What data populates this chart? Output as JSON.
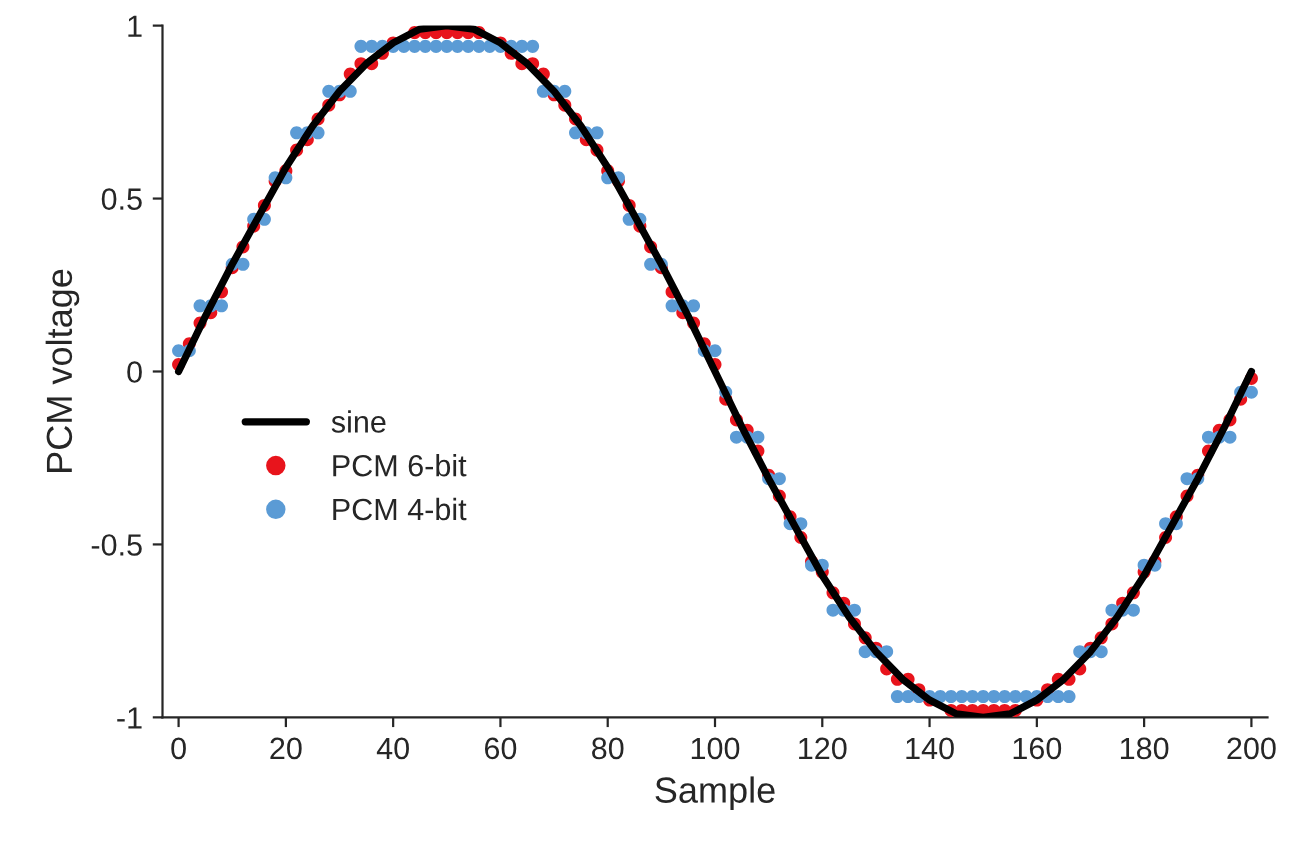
{
  "chart_data": {
    "type": "scatter",
    "xlabel": "Sample",
    "ylabel": "PCM voltage",
    "xlim": [
      -3,
      203
    ],
    "xticks": [
      0,
      20,
      40,
      60,
      80,
      100,
      120,
      140,
      160,
      180,
      200
    ],
    "ylim": [
      -1,
      1
    ],
    "yticks": [
      -1,
      -0.5,
      0,
      0.5,
      1
    ],
    "grid": false,
    "legend": "center left",
    "marker": "circle",
    "series": [
      {
        "name": "sine",
        "type": "line",
        "color": "#000000",
        "line_style": "solid",
        "marker": "none",
        "x": [
          0,
          5,
          10,
          15,
          20,
          25,
          30,
          35,
          40,
          45,
          50,
          55,
          60,
          65,
          70,
          75,
          80,
          85,
          90,
          95,
          100,
          105,
          110,
          115,
          120,
          125,
          130,
          135,
          140,
          145,
          150,
          155,
          160,
          165,
          170,
          175,
          180,
          185,
          190,
          195,
          200
        ],
        "values": [
          0,
          0.16,
          0.31,
          0.45,
          0.59,
          0.71,
          0.81,
          0.89,
          0.95,
          0.99,
          1,
          0.99,
          0.95,
          0.89,
          0.81,
          0.71,
          0.59,
          0.45,
          0.31,
          0.16,
          0,
          -0.16,
          -0.31,
          -0.45,
          -0.59,
          -0.71,
          -0.81,
          -0.89,
          -0.95,
          -0.99,
          -1,
          -0.99,
          -0.95,
          -0.89,
          -0.81,
          -0.71,
          -0.59,
          -0.45,
          -0.31,
          -0.16,
          0
        ]
      },
      {
        "name": "PCM 6-bit",
        "color": "#e8141c",
        "x": [
          0,
          2,
          4,
          6,
          8,
          10,
          12,
          14,
          16,
          18,
          20,
          22,
          24,
          26,
          28,
          30,
          32,
          34,
          36,
          38,
          40,
          42,
          44,
          46,
          48,
          50,
          52,
          54,
          56,
          58,
          60,
          62,
          64,
          66,
          68,
          70,
          72,
          74,
          76,
          78,
          80,
          82,
          84,
          86,
          88,
          90,
          92,
          94,
          96,
          98,
          100,
          102,
          104,
          106,
          108,
          110,
          112,
          114,
          116,
          118,
          120,
          122,
          124,
          126,
          128,
          130,
          132,
          134,
          136,
          138,
          140,
          142,
          144,
          146,
          148,
          150,
          152,
          154,
          156,
          158,
          160,
          162,
          164,
          166,
          168,
          170,
          172,
          174,
          176,
          178,
          180,
          182,
          184,
          186,
          188,
          190,
          192,
          194,
          196,
          198,
          200
        ],
        "values": [
          0.02,
          0.08,
          0.14,
          0.17,
          0.23,
          0.3,
          0.36,
          0.42,
          0.48,
          0.55,
          0.58,
          0.64,
          0.67,
          0.73,
          0.77,
          0.8,
          0.86,
          0.89,
          0.89,
          0.92,
          0.95,
          null,
          0.98,
          0.98,
          0.98,
          0.98,
          0.98,
          0.98,
          0.98,
          null,
          0.95,
          0.92,
          0.89,
          0.89,
          0.86,
          0.8,
          0.77,
          0.73,
          0.67,
          0.64,
          0.58,
          0.55,
          0.48,
          0.42,
          0.36,
          0.3,
          0.23,
          0.17,
          0.14,
          0.08,
          0.02,
          -0.08,
          -0.14,
          -0.17,
          -0.23,
          -0.3,
          -0.36,
          -0.42,
          -0.48,
          -0.55,
          -0.58,
          -0.64,
          -0.67,
          -0.73,
          -0.77,
          -0.8,
          -0.86,
          -0.89,
          -0.89,
          -0.92,
          -0.95,
          null,
          -0.98,
          -0.98,
          -0.98,
          -0.98,
          -0.98,
          -0.98,
          -0.98,
          null,
          -0.95,
          -0.92,
          -0.89,
          -0.89,
          -0.86,
          -0.8,
          -0.77,
          -0.73,
          -0.67,
          -0.64,
          -0.58,
          -0.55,
          -0.48,
          -0.42,
          -0.36,
          -0.3,
          -0.23,
          -0.17,
          -0.14,
          -0.08,
          -0.02
        ]
      },
      {
        "name": "PCM 4-bit",
        "color": "#5b9bd5",
        "x": [
          0,
          2,
          4,
          6,
          8,
          10,
          12,
          14,
          16,
          18,
          20,
          22,
          24,
          26,
          28,
          30,
          32,
          34,
          36,
          38,
          40,
          42,
          44,
          46,
          48,
          50,
          52,
          54,
          56,
          58,
          60,
          62,
          64,
          66,
          68,
          70,
          72,
          74,
          76,
          78,
          80,
          82,
          84,
          86,
          88,
          90,
          92,
          94,
          96,
          98,
          100,
          102,
          104,
          106,
          108,
          110,
          112,
          114,
          116,
          118,
          120,
          122,
          124,
          126,
          128,
          130,
          132,
          134,
          136,
          138,
          140,
          142,
          144,
          146,
          148,
          150,
          152,
          154,
          156,
          158,
          160,
          162,
          164,
          166,
          168,
          170,
          172,
          174,
          176,
          178,
          180,
          182,
          184,
          186,
          188,
          190,
          192,
          194,
          196,
          198,
          200
        ],
        "values": [
          0.06,
          0.06,
          0.19,
          0.19,
          0.19,
          0.31,
          0.31,
          0.44,
          0.44,
          0.56,
          0.56,
          0.69,
          0.69,
          0.69,
          0.81,
          0.81,
          0.81,
          0.94,
          0.94,
          0.94,
          0.94,
          0.94,
          0.94,
          0.94,
          0.94,
          0.94,
          0.94,
          0.94,
          0.94,
          0.94,
          0.94,
          0.94,
          0.94,
          0.94,
          0.81,
          0.81,
          0.81,
          0.69,
          0.69,
          0.69,
          0.56,
          0.56,
          0.44,
          0.44,
          0.31,
          0.31,
          0.19,
          0.19,
          0.19,
          0.06,
          0.06,
          -0.06,
          -0.19,
          -0.19,
          -0.19,
          -0.31,
          -0.31,
          -0.44,
          -0.44,
          -0.56,
          -0.56,
          -0.69,
          -0.69,
          -0.69,
          -0.81,
          -0.81,
          -0.81,
          -0.94,
          -0.94,
          -0.94,
          -0.94,
          -0.94,
          -0.94,
          -0.94,
          -0.94,
          -0.94,
          -0.94,
          -0.94,
          -0.94,
          -0.94,
          -0.94,
          -0.94,
          -0.94,
          -0.94,
          -0.81,
          -0.81,
          -0.81,
          -0.69,
          -0.69,
          -0.69,
          -0.56,
          -0.56,
          -0.44,
          -0.44,
          -0.31,
          -0.31,
          -0.19,
          -0.19,
          -0.19,
          -0.06,
          -0.06
        ]
      }
    ]
  }
}
